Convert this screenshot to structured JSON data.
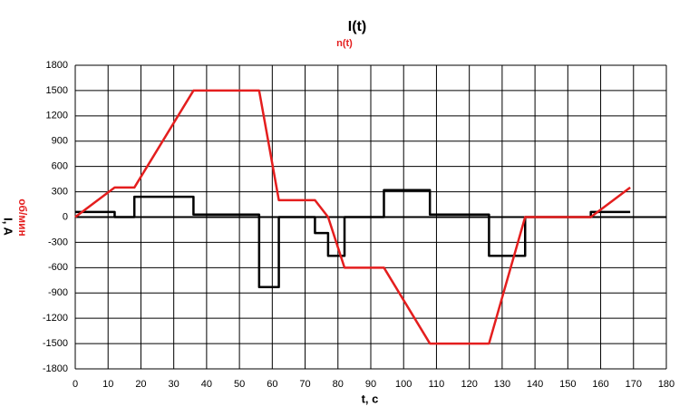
{
  "chart_data": {
    "type": "line",
    "title": "I(t)",
    "subtitle": "n(t)",
    "xlabel": "t, c",
    "ylabel": "I, A",
    "ylabel2": "об/мин",
    "xlim": [
      0,
      180
    ],
    "xticks": [
      0,
      10,
      20,
      30,
      40,
      50,
      60,
      70,
      80,
      90,
      100,
      110,
      120,
      130,
      140,
      150,
      160,
      170,
      180
    ],
    "ylim": [
      -1800,
      1800
    ],
    "yticks": [
      -1800,
      -1500,
      -1200,
      -900,
      -600,
      -300,
      0,
      300,
      600,
      900,
      1200,
      1500,
      1800
    ],
    "grid": true,
    "series": [
      {
        "name": "I(t)",
        "color": "#000000",
        "x": [
          0,
          12,
          12,
          18,
          18,
          36,
          36,
          56,
          56,
          62,
          62,
          73,
          73,
          77,
          77,
          82,
          82,
          94,
          94,
          108,
          108,
          126,
          126,
          137,
          137,
          157,
          157,
          169
        ],
        "values": [
          60,
          60,
          0,
          0,
          240,
          240,
          30,
          30,
          -830,
          -830,
          0,
          0,
          -190,
          -190,
          -460,
          -460,
          0,
          0,
          320,
          320,
          30,
          30,
          -460,
          -460,
          0,
          0,
          60,
          60
        ]
      },
      {
        "name": "n(t)",
        "color": "#e41e1e",
        "x": [
          0,
          12,
          18,
          36,
          56,
          62,
          73,
          77,
          82,
          94,
          108,
          126,
          137,
          157,
          169
        ],
        "values": [
          0,
          350,
          350,
          1500,
          1500,
          200,
          200,
          0,
          -600,
          -600,
          -1500,
          -1500,
          0,
          0,
          350
        ]
      }
    ]
  }
}
